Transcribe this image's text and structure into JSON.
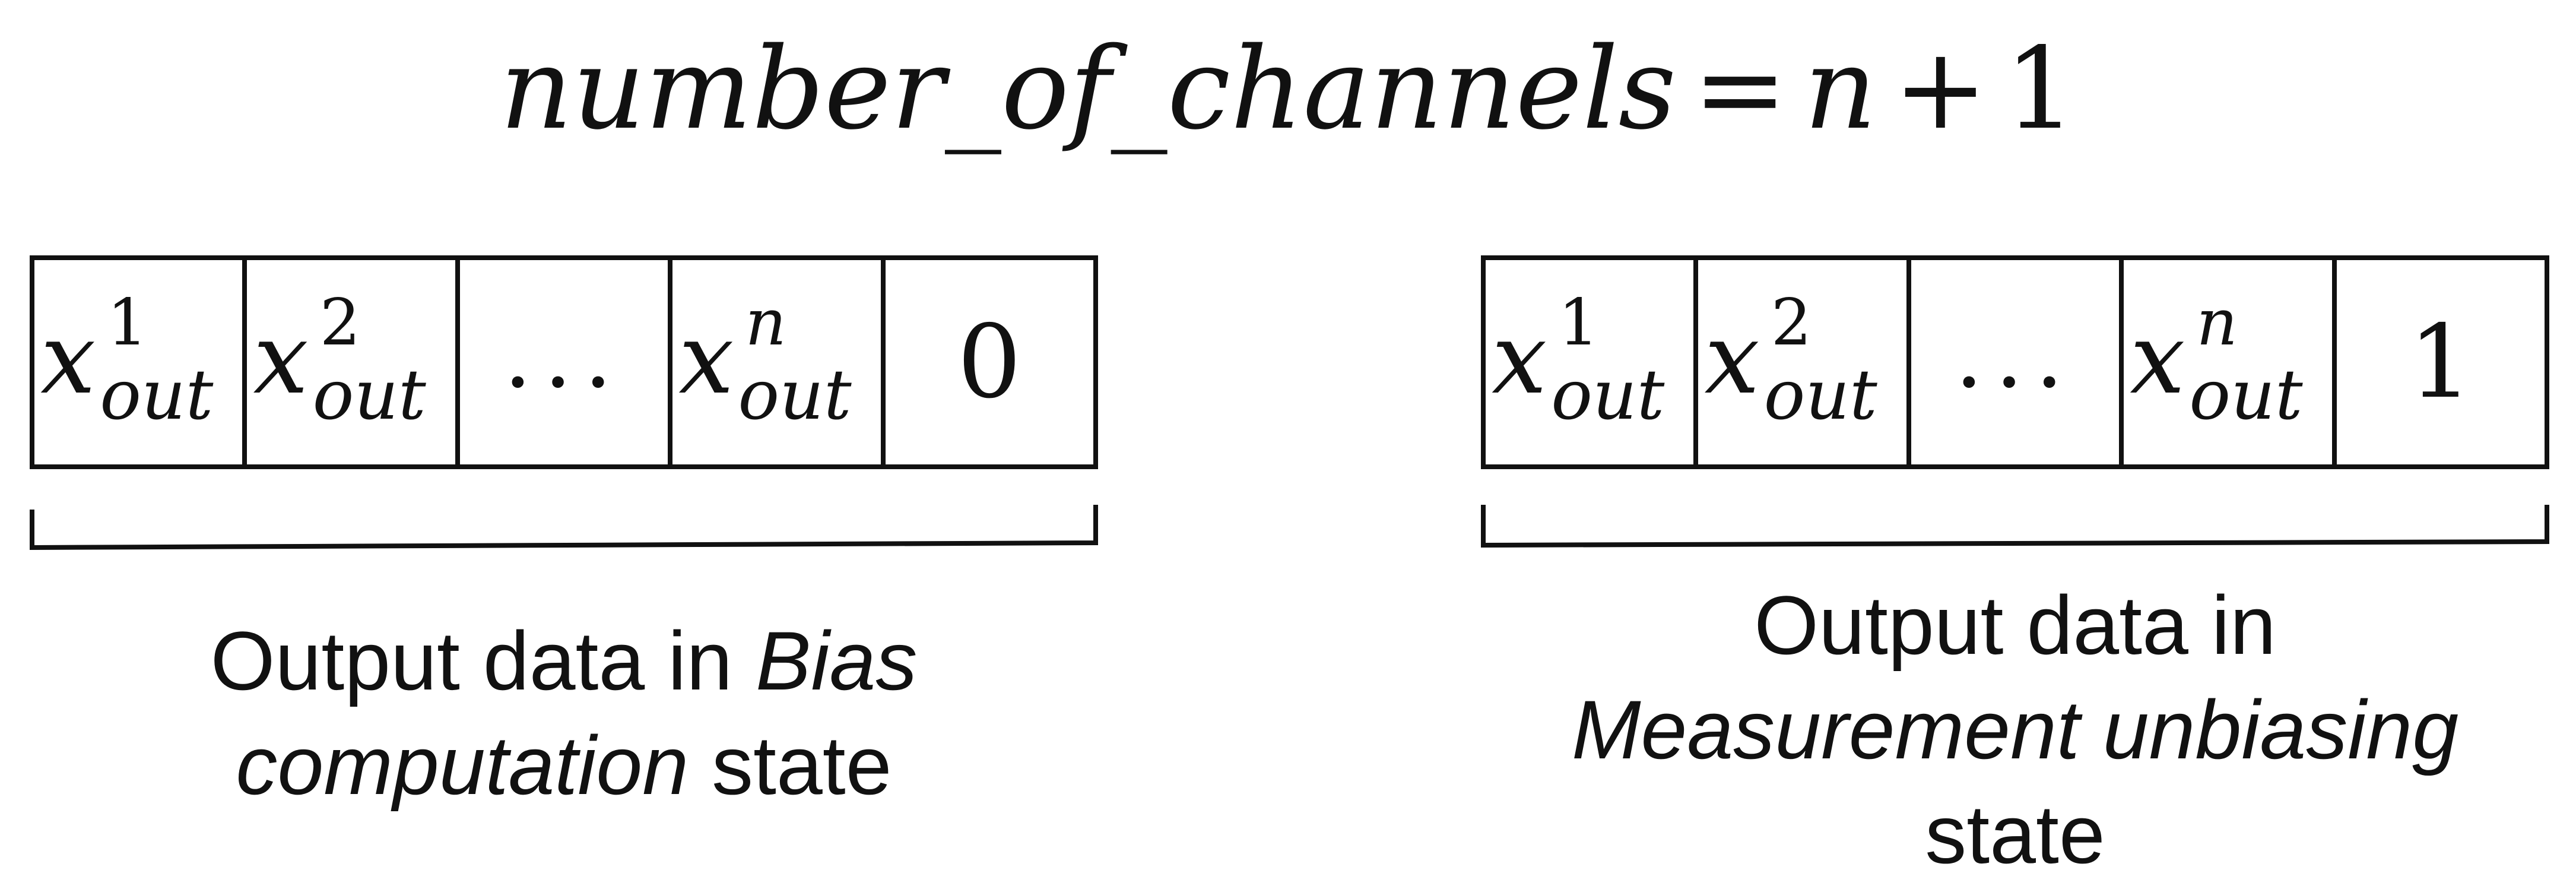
{
  "formula": {
    "name": "number_of_channels",
    "operator_eq": "=",
    "variable": "n",
    "operator_plus": "+",
    "constant": "1"
  },
  "panels": [
    {
      "cells": [
        {
          "type": "x",
          "base": "x",
          "sup": "1",
          "sub": "out"
        },
        {
          "type": "x",
          "base": "x",
          "sup": "2",
          "sub": "out"
        },
        {
          "type": "ellipsis",
          "text": "..."
        },
        {
          "type": "x",
          "base": "x",
          "sup": "n",
          "sub": "out"
        },
        {
          "type": "const",
          "text": "0"
        }
      ],
      "caption": {
        "line1_prefix": "Output data in ",
        "line1_italic": "Bias",
        "line2_italic": "computation",
        "line2_suffix": " state"
      }
    },
    {
      "cells": [
        {
          "type": "x",
          "base": "x",
          "sup": "1",
          "sub": "out"
        },
        {
          "type": "x",
          "base": "x",
          "sup": "2",
          "sub": "out"
        },
        {
          "type": "ellipsis",
          "text": "..."
        },
        {
          "type": "x",
          "base": "x",
          "sup": "n",
          "sub": "out"
        },
        {
          "type": "const",
          "text": "1"
        }
      ],
      "caption": {
        "line1": "Output data in",
        "line2_italic": "Measurement unbiasing",
        "line3": "state"
      }
    }
  ],
  "colors": {
    "ink": "#111111",
    "background": "#ffffff"
  }
}
